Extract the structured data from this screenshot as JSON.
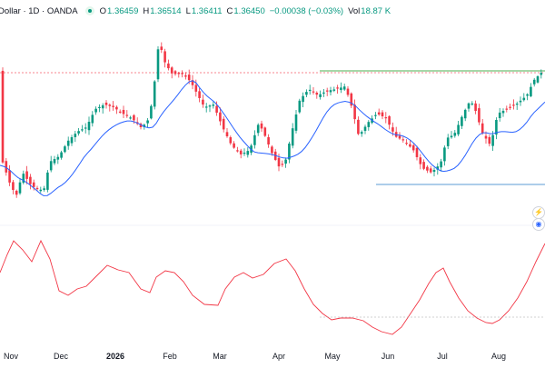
{
  "legend": {
    "title": "Dollar · 1D · OANDA",
    "open_label": "O",
    "open": "1.36459",
    "high_label": "H",
    "high": "1.36514",
    "low_label": "L",
    "low": "1.36411",
    "close_label": "C",
    "close": "1.36450",
    "change": "−0.00038 (−0.03%)",
    "vol_label": "Vol",
    "vol": "18.87 K"
  },
  "colors": {
    "up": "#089981",
    "down": "#f23645",
    "ma": "#2962ff",
    "oscillator": "#f23645",
    "resistance": "#4caf50",
    "support": "#5b9bd5",
    "current_price_line": "#f23645"
  },
  "icons": [
    "status-dot-icon",
    "alert-icon",
    "indicator-icon"
  ],
  "x_axis": {
    "labels": [
      "Nov",
      "Dec",
      "2026",
      "Feb",
      "Mar",
      "Apr",
      "May",
      "Jun",
      "Jul",
      "Aug"
    ]
  }
}
